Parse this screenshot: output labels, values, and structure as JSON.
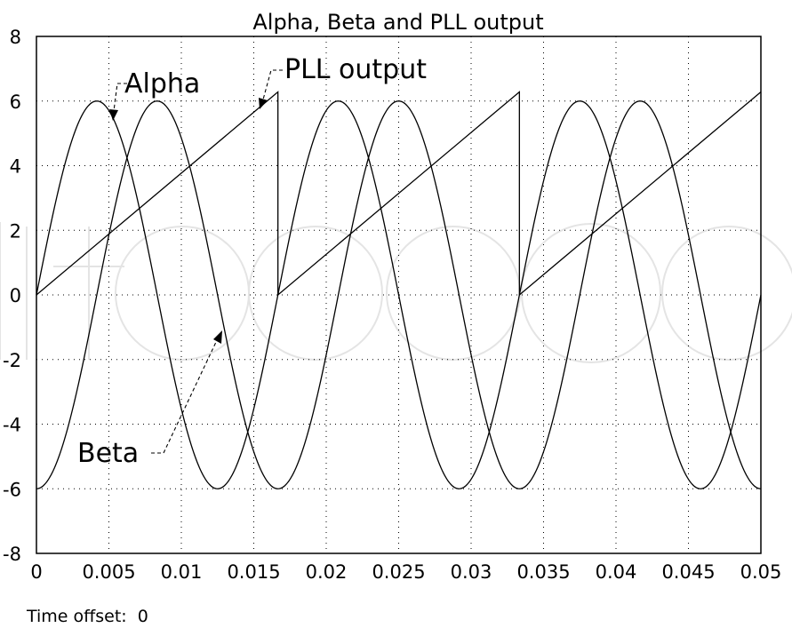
{
  "chart_data": {
    "type": "line",
    "title": "Alpha, Beta and PLL output",
    "xlabel": "",
    "ylabel": "",
    "xlim": [
      0,
      0.05
    ],
    "ylim": [
      -8,
      8
    ],
    "x_ticks": [
      0,
      0.005,
      0.01,
      0.015,
      0.02,
      0.025,
      0.03,
      0.035,
      0.04,
      0.045,
      0.05
    ],
    "x_tick_labels": [
      "0",
      "0.005",
      "0.01",
      "0.015",
      "0.02",
      "0.025",
      "0.03",
      "0.035",
      "0.04",
      "0.045",
      "0.05"
    ],
    "y_ticks": [
      -8,
      -6,
      -4,
      -2,
      0,
      2,
      4,
      6,
      8
    ],
    "y_tick_labels": [
      "-8",
      "-6",
      "-4",
      "-2",
      "0",
      "2",
      "4",
      "6",
      "8"
    ],
    "grid": true,
    "series": [
      {
        "name": "Alpha",
        "kind": "sine",
        "amplitude": 6,
        "frequency_hz": 60,
        "phase": "sin",
        "sample_points": [
          [
            0,
            0
          ],
          [
            0.004167,
            6
          ],
          [
            0.008333,
            0
          ],
          [
            0.0125,
            -6
          ],
          [
            0.016667,
            0
          ],
          [
            0.020833,
            6
          ],
          [
            0.025,
            0
          ],
          [
            0.029167,
            -6
          ],
          [
            0.033333,
            0
          ],
          [
            0.0375,
            6
          ],
          [
            0.041667,
            0
          ],
          [
            0.045833,
            -6
          ],
          [
            0.05,
            0
          ]
        ]
      },
      {
        "name": "Beta",
        "kind": "sine",
        "amplitude": 6,
        "frequency_hz": 60,
        "phase": "-cos",
        "sample_points": [
          [
            0,
            -6
          ],
          [
            0.004167,
            0
          ],
          [
            0.008333,
            6
          ],
          [
            0.0125,
            0
          ],
          [
            0.016667,
            -6
          ],
          [
            0.020833,
            0
          ],
          [
            0.025,
            6
          ],
          [
            0.029167,
            0
          ],
          [
            0.033333,
            -6
          ],
          [
            0.0375,
            0
          ],
          [
            0.041667,
            6
          ],
          [
            0.045833,
            0
          ],
          [
            0.05,
            -6
          ]
        ]
      },
      {
        "name": "PLL output",
        "kind": "sawtooth",
        "points": [
          [
            0,
            0
          ],
          [
            0.016667,
            6.283
          ],
          [
            0.016667,
            0
          ],
          [
            0.033333,
            6.283
          ],
          [
            0.033333,
            0
          ],
          [
            0.05,
            6.283
          ]
        ]
      }
    ],
    "annotations": [
      {
        "text": "Alpha",
        "target_series": "Alpha"
      },
      {
        "text": "PLL output",
        "target_series": "PLL output"
      },
      {
        "text": "Beta",
        "target_series": "Beta"
      }
    ]
  },
  "footer": {
    "time_offset": "Time offset:  0"
  }
}
